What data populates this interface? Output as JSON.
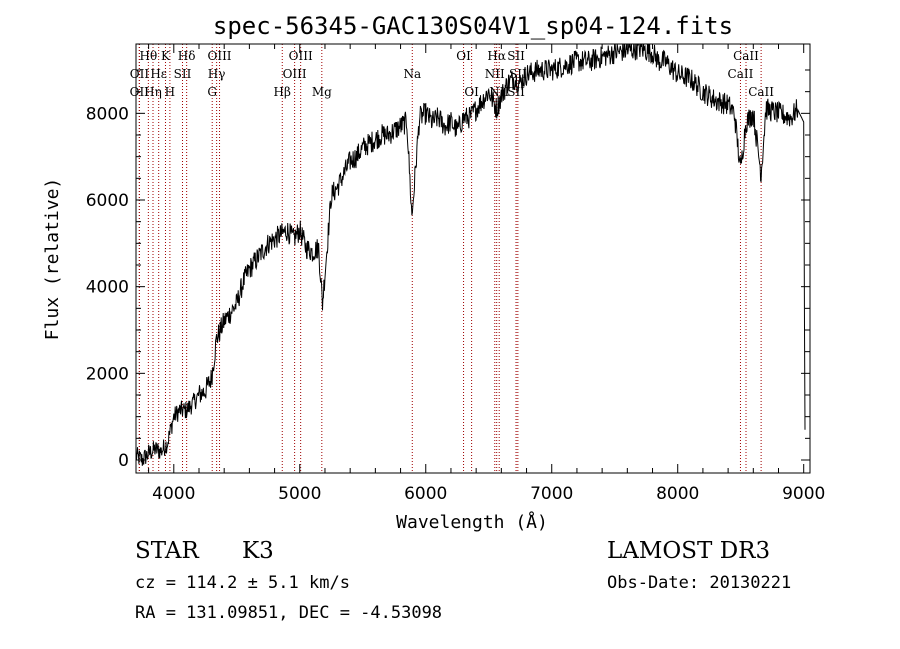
{
  "chart_data": {
    "type": "line",
    "title": "spec-56345-GAC130S04V1_sp04-124.fits",
    "xlabel": "Wavelength (Å)",
    "ylabel": "Flux (relative)",
    "xlim": [
      3700,
      9050
    ],
    "ylim": [
      -300,
      9600
    ],
    "xticks": [
      4000,
      5000,
      6000,
      7000,
      8000,
      9000
    ],
    "yticks": [
      0,
      2000,
      4000,
      6000,
      8000
    ],
    "grid": false,
    "series": [
      {
        "name": "flux",
        "x": [
          3700,
          3750,
          3800,
          3850,
          3900,
          3950,
          4000,
          4050,
          4100,
          4150,
          4200,
          4250,
          4300,
          4340,
          4400,
          4450,
          4500,
          4550,
          4600,
          4650,
          4700,
          4750,
          4800,
          4850,
          4900,
          4950,
          5000,
          5050,
          5100,
          5150,
          5180,
          5250,
          5300,
          5350,
          5400,
          5450,
          5500,
          5550,
          5600,
          5650,
          5700,
          5750,
          5800,
          5850,
          5890,
          5950,
          6000,
          6050,
          6100,
          6150,
          6200,
          6250,
          6300,
          6350,
          6400,
          6450,
          6500,
          6563,
          6600,
          6650,
          6700,
          6750,
          6800,
          6900,
          7000,
          7100,
          7200,
          7300,
          7400,
          7500,
          7600,
          7700,
          7800,
          7850,
          7900,
          8000,
          8100,
          8200,
          8300,
          8400,
          8450,
          8498,
          8542,
          8600,
          8662,
          8700,
          8800,
          8900,
          8950,
          9000,
          9010
        ],
        "y": [
          100,
          0,
          150,
          250,
          200,
          400,
          1000,
          1150,
          1150,
          1300,
          1500,
          1600,
          1900,
          2800,
          3200,
          3400,
          3600,
          4100,
          4400,
          4600,
          4800,
          5000,
          5100,
          5200,
          5300,
          5100,
          5300,
          4900,
          4800,
          4900,
          3600,
          6100,
          6300,
          6600,
          6900,
          7000,
          7200,
          7300,
          7400,
          7500,
          7500,
          7600,
          7700,
          7800,
          5600,
          7900,
          8000,
          7800,
          7900,
          7700,
          7800,
          7600,
          7900,
          7900,
          8100,
          8300,
          8500,
          8100,
          8400,
          8700,
          8800,
          8700,
          8900,
          9000,
          9000,
          9100,
          9200,
          9200,
          9300,
          9400,
          9450,
          9500,
          9400,
          9200,
          9200,
          8900,
          8800,
          8500,
          8300,
          8200,
          8000,
          6700,
          7800,
          8000,
          6600,
          8100,
          8000,
          7900,
          8100,
          7800,
          700
        ]
      }
    ],
    "lines": [
      {
        "label": "Hθ",
        "row": 0,
        "x": 3798
      },
      {
        "label": "K",
        "row": 0,
        "x": 3934
      },
      {
        "label": "Hδ",
        "row": 0,
        "x": 4102
      },
      {
        "label": "OIII",
        "row": 0,
        "x": 4363
      },
      {
        "label": "OIII",
        "row": 0,
        "x": 5007
      },
      {
        "label": "OI",
        "row": 0,
        "x": 6300
      },
      {
        "label": "Hα",
        "row": 0,
        "x": 6563
      },
      {
        "label": "SII",
        "row": 0,
        "x": 6717
      },
      {
        "label": "CaII",
        "row": 0,
        "x": 8542
      },
      {
        "label": "OII",
        "row": 1,
        "x": 3727
      },
      {
        "label": "Hε",
        "row": 1,
        "x": 3880
      },
      {
        "label": "SII",
        "row": 1,
        "x": 4069
      },
      {
        "label": "Hγ",
        "row": 1,
        "x": 4340
      },
      {
        "label": "OIII",
        "row": 1,
        "x": 4959
      },
      {
        "label": "Na",
        "row": 1,
        "x": 5893
      },
      {
        "label": "NII",
        "row": 1,
        "x": 6548
      },
      {
        "label": "SII",
        "row": 1,
        "x": 6731
      },
      {
        "label": "CaII",
        "row": 1,
        "x": 8498
      },
      {
        "label": "OII",
        "row": 2,
        "x": 3726
      },
      {
        "label": "Hη",
        "row": 2,
        "x": 3835
      },
      {
        "label": "H",
        "row": 2,
        "x": 3969
      },
      {
        "label": "G",
        "row": 2,
        "x": 4305
      },
      {
        "label": "Hβ",
        "row": 2,
        "x": 4861
      },
      {
        "label": "Mg",
        "row": 2,
        "x": 5175
      },
      {
        "label": "OI",
        "row": 2,
        "x": 6364
      },
      {
        "label": "NII",
        "row": 2,
        "x": 6583
      },
      {
        "label": "SII",
        "row": 2,
        "x": 6717
      },
      {
        "label": "CaII",
        "row": 2,
        "x": 8662
      }
    ]
  },
  "info": {
    "class": "STAR",
    "subclass": "K3",
    "survey": "LAMOST DR3",
    "cz": "cz = 114.2 ± 5.1 km/s",
    "obs_date": "Obs-Date: 20130221",
    "coords": "RA = 131.09851, DEC =  -4.53098"
  }
}
